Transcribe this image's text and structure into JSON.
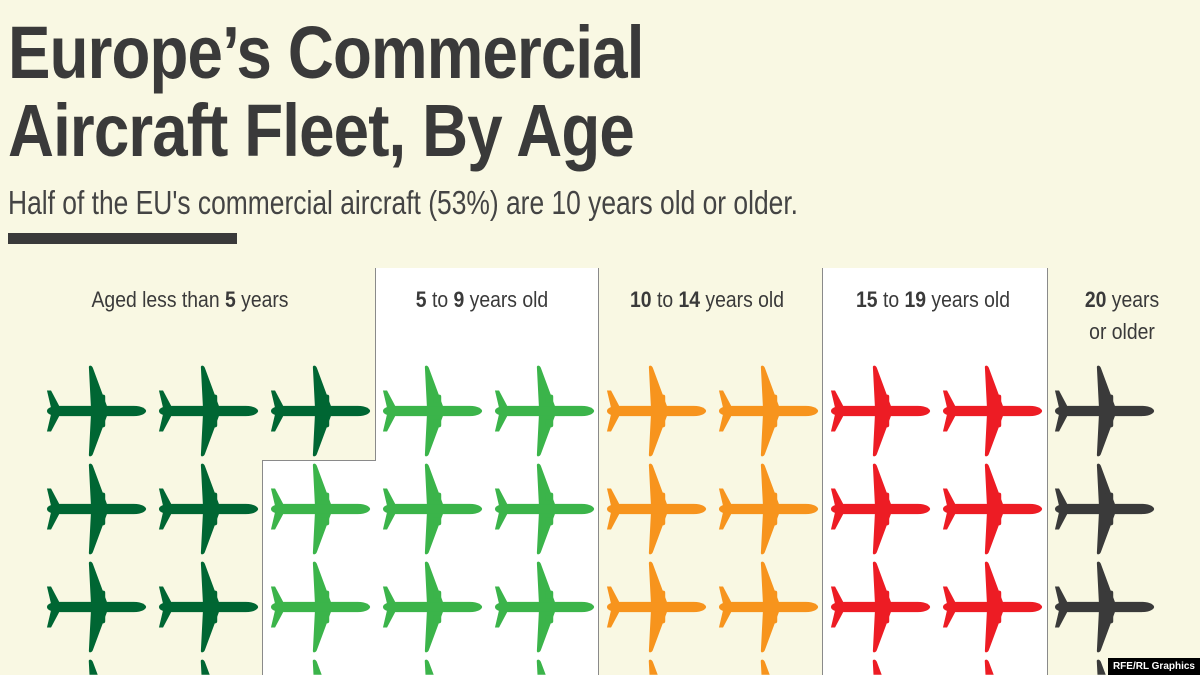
{
  "title": {
    "line1": "Europe’s Commercial",
    "line2": "Aircraft Fleet, By Age"
  },
  "subtitle": "Half of the EU's commercial aircraft (53%) are 10 years old or older.",
  "watermark": "RFE/RL Graphics",
  "chart_data": {
    "type": "pictogram",
    "unit_icon": "airplane-icon",
    "categories": [
      {
        "label_parts": [
          "Aged less than ",
          "5",
          " years"
        ],
        "color": "#006633"
      },
      {
        "label_parts": [
          "",
          "5",
          " to ",
          "9",
          " years old"
        ],
        "color": "#3bb44a"
      },
      {
        "label_parts": [
          "",
          "10",
          " to ",
          "14",
          " years old"
        ],
        "color": "#f7941d"
      },
      {
        "label_parts": [
          "",
          "15",
          " to ",
          "19",
          " years old"
        ],
        "color": "#ed1c24"
      },
      {
        "label_parts": [
          "",
          "20",
          " years",
          "or older"
        ],
        "color": "#3a3a3a"
      }
    ]
  }
}
